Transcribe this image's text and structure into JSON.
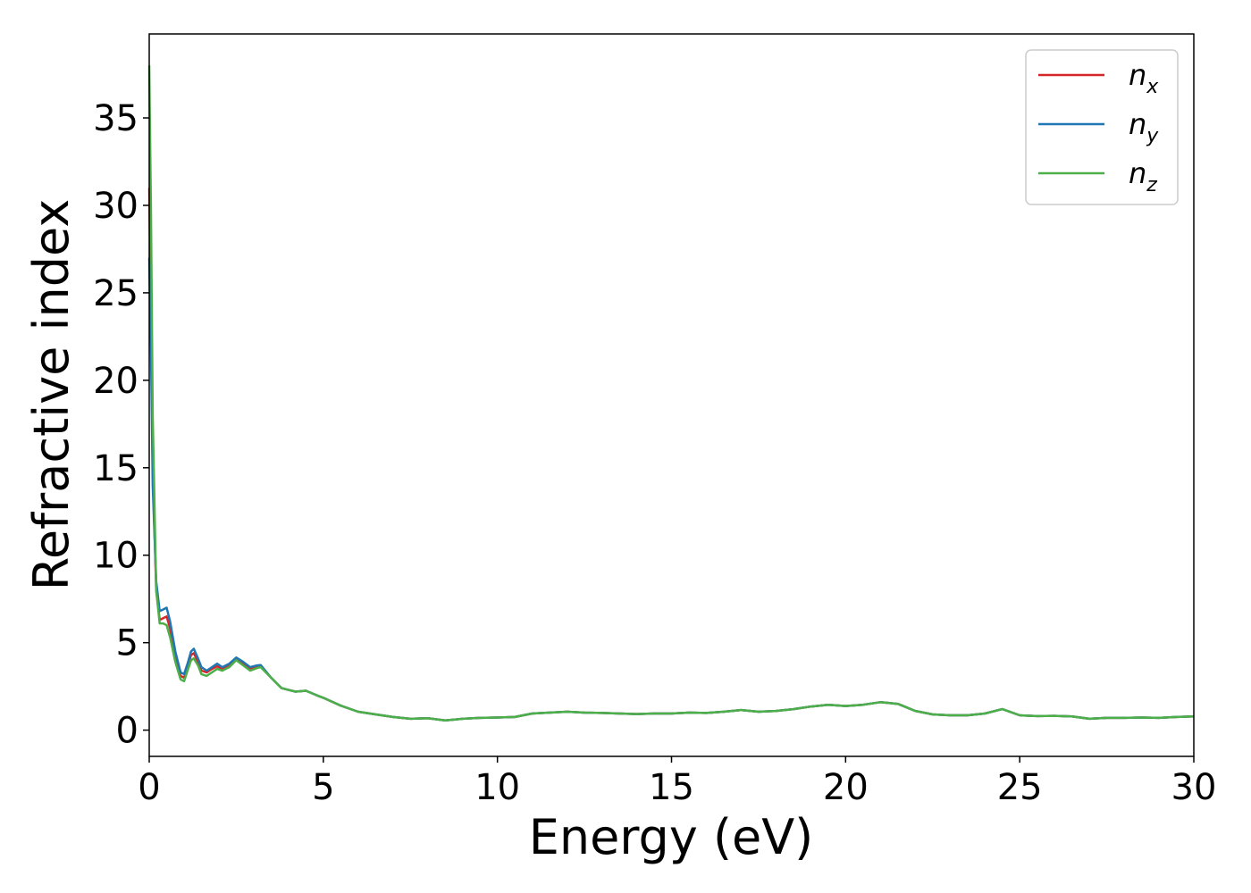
{
  "chart_data": {
    "type": "line",
    "title": "",
    "xlabel": "Energy (eV)",
    "ylabel": "Refractive index",
    "xlim": [
      0,
      30
    ],
    "ylim": [
      -1.5,
      39.8
    ],
    "xticks": [
      0,
      5,
      10,
      15,
      20,
      25,
      30
    ],
    "yticks": [
      0,
      5,
      10,
      15,
      20,
      25,
      30,
      35
    ],
    "grid": false,
    "legend_position": "top-right",
    "series": [
      {
        "name": "n",
        "subscript": "x",
        "color": "#d62728",
        "points": [
          [
            0.0,
            31.0
          ],
          [
            0.05,
            24.0
          ],
          [
            0.1,
            15.0
          ],
          [
            0.2,
            8.0
          ],
          [
            0.3,
            6.3
          ],
          [
            0.4,
            6.4
          ],
          [
            0.5,
            6.5
          ],
          [
            0.6,
            5.8
          ],
          [
            0.75,
            4.2
          ],
          [
            0.9,
            3.1
          ],
          [
            1.0,
            3.0
          ],
          [
            1.1,
            3.6
          ],
          [
            1.2,
            4.3
          ],
          [
            1.28,
            4.4
          ],
          [
            1.4,
            3.9
          ],
          [
            1.5,
            3.4
          ],
          [
            1.65,
            3.3
          ],
          [
            1.8,
            3.5
          ],
          [
            1.95,
            3.65
          ],
          [
            2.1,
            3.5
          ],
          [
            2.3,
            3.7
          ],
          [
            2.5,
            4.05
          ],
          [
            2.7,
            3.8
          ],
          [
            2.9,
            3.5
          ],
          [
            3.1,
            3.6
          ],
          [
            3.2,
            3.65
          ],
          [
            3.5,
            3.0
          ],
          [
            3.8,
            2.4
          ],
          [
            4.0,
            2.3
          ],
          [
            4.2,
            2.2
          ],
          [
            4.5,
            2.25
          ],
          [
            4.8,
            2.0
          ],
          [
            5.0,
            1.85
          ],
          [
            5.5,
            1.4
          ],
          [
            6.0,
            1.05
          ],
          [
            6.5,
            0.9
          ],
          [
            7.0,
            0.75
          ],
          [
            7.5,
            0.65
          ],
          [
            8.0,
            0.68
          ],
          [
            8.5,
            0.55
          ],
          [
            9.0,
            0.65
          ],
          [
            9.5,
            0.7
          ],
          [
            10.0,
            0.72
          ],
          [
            10.5,
            0.75
          ],
          [
            11.0,
            0.95
          ],
          [
            11.5,
            1.0
          ],
          [
            12.0,
            1.05
          ],
          [
            12.5,
            1.0
          ],
          [
            13.0,
            0.98
          ],
          [
            13.5,
            0.95
          ],
          [
            14.0,
            0.92
          ],
          [
            14.5,
            0.95
          ],
          [
            15.0,
            0.95
          ],
          [
            15.5,
            1.0
          ],
          [
            16.0,
            0.98
          ],
          [
            16.5,
            1.05
          ],
          [
            17.0,
            1.15
          ],
          [
            17.5,
            1.05
          ],
          [
            18.0,
            1.1
          ],
          [
            18.5,
            1.2
          ],
          [
            19.0,
            1.35
          ],
          [
            19.5,
            1.45
          ],
          [
            20.0,
            1.38
          ],
          [
            20.5,
            1.45
          ],
          [
            21.0,
            1.6
          ],
          [
            21.5,
            1.5
          ],
          [
            22.0,
            1.1
          ],
          [
            22.5,
            0.9
          ],
          [
            23.0,
            0.85
          ],
          [
            23.5,
            0.85
          ],
          [
            24.0,
            0.95
          ],
          [
            24.5,
            1.2
          ],
          [
            25.0,
            0.85
          ],
          [
            25.5,
            0.8
          ],
          [
            26.0,
            0.82
          ],
          [
            26.5,
            0.78
          ],
          [
            27.0,
            0.65
          ],
          [
            27.5,
            0.7
          ],
          [
            28.0,
            0.7
          ],
          [
            28.5,
            0.72
          ],
          [
            29.0,
            0.7
          ],
          [
            29.5,
            0.75
          ],
          [
            30.0,
            0.78
          ]
        ]
      },
      {
        "name": "n",
        "subscript": "y",
        "color": "#1f77b4",
        "points": [
          [
            0.0,
            27.0
          ],
          [
            0.05,
            22.0
          ],
          [
            0.1,
            14.0
          ],
          [
            0.2,
            8.5
          ],
          [
            0.3,
            6.8
          ],
          [
            0.4,
            6.9
          ],
          [
            0.5,
            7.0
          ],
          [
            0.6,
            6.2
          ],
          [
            0.75,
            4.5
          ],
          [
            0.9,
            3.3
          ],
          [
            1.0,
            3.2
          ],
          [
            1.1,
            3.8
          ],
          [
            1.2,
            4.5
          ],
          [
            1.28,
            4.65
          ],
          [
            1.4,
            4.1
          ],
          [
            1.5,
            3.6
          ],
          [
            1.65,
            3.4
          ],
          [
            1.8,
            3.6
          ],
          [
            1.95,
            3.8
          ],
          [
            2.1,
            3.6
          ],
          [
            2.3,
            3.8
          ],
          [
            2.5,
            4.15
          ],
          [
            2.7,
            3.9
          ],
          [
            2.9,
            3.6
          ],
          [
            3.1,
            3.7
          ],
          [
            3.2,
            3.72
          ],
          [
            3.5,
            3.0
          ],
          [
            3.8,
            2.4
          ],
          [
            4.0,
            2.3
          ],
          [
            4.2,
            2.2
          ],
          [
            4.5,
            2.25
          ],
          [
            4.8,
            2.0
          ],
          [
            5.0,
            1.85
          ],
          [
            5.5,
            1.4
          ],
          [
            6.0,
            1.05
          ],
          [
            6.5,
            0.9
          ],
          [
            7.0,
            0.75
          ],
          [
            7.5,
            0.65
          ],
          [
            8.0,
            0.68
          ],
          [
            8.5,
            0.55
          ],
          [
            9.0,
            0.65
          ],
          [
            9.5,
            0.7
          ],
          [
            10.0,
            0.72
          ],
          [
            10.5,
            0.75
          ],
          [
            11.0,
            0.95
          ],
          [
            11.5,
            1.0
          ],
          [
            12.0,
            1.05
          ],
          [
            12.5,
            1.0
          ],
          [
            13.0,
            0.98
          ],
          [
            13.5,
            0.95
          ],
          [
            14.0,
            0.92
          ],
          [
            14.5,
            0.95
          ],
          [
            15.0,
            0.95
          ],
          [
            15.5,
            1.0
          ],
          [
            16.0,
            0.98
          ],
          [
            16.5,
            1.05
          ],
          [
            17.0,
            1.15
          ],
          [
            17.5,
            1.05
          ],
          [
            18.0,
            1.1
          ],
          [
            18.5,
            1.2
          ],
          [
            19.0,
            1.35
          ],
          [
            19.5,
            1.45
          ],
          [
            20.0,
            1.38
          ],
          [
            20.5,
            1.45
          ],
          [
            21.0,
            1.6
          ],
          [
            21.5,
            1.5
          ],
          [
            22.0,
            1.1
          ],
          [
            22.5,
            0.9
          ],
          [
            23.0,
            0.85
          ],
          [
            23.5,
            0.85
          ],
          [
            24.0,
            0.95
          ],
          [
            24.5,
            1.2
          ],
          [
            25.0,
            0.85
          ],
          [
            25.5,
            0.8
          ],
          [
            26.0,
            0.82
          ],
          [
            26.5,
            0.78
          ],
          [
            27.0,
            0.65
          ],
          [
            27.5,
            0.7
          ],
          [
            28.0,
            0.7
          ],
          [
            28.5,
            0.72
          ],
          [
            29.0,
            0.7
          ],
          [
            29.5,
            0.75
          ],
          [
            30.0,
            0.78
          ]
        ]
      },
      {
        "name": "n",
        "subscript": "z",
        "color": "#4daf4a",
        "points": [
          [
            0.0,
            38.0
          ],
          [
            0.05,
            30.0
          ],
          [
            0.1,
            18.0
          ],
          [
            0.2,
            8.0
          ],
          [
            0.3,
            6.1
          ],
          [
            0.4,
            6.1
          ],
          [
            0.5,
            6.0
          ],
          [
            0.6,
            5.3
          ],
          [
            0.75,
            3.9
          ],
          [
            0.9,
            2.9
          ],
          [
            1.0,
            2.8
          ],
          [
            1.1,
            3.4
          ],
          [
            1.2,
            4.0
          ],
          [
            1.28,
            4.1
          ],
          [
            1.4,
            3.7
          ],
          [
            1.5,
            3.2
          ],
          [
            1.65,
            3.1
          ],
          [
            1.8,
            3.3
          ],
          [
            1.95,
            3.5
          ],
          [
            2.1,
            3.4
          ],
          [
            2.3,
            3.6
          ],
          [
            2.5,
            4.0
          ],
          [
            2.7,
            3.7
          ],
          [
            2.9,
            3.4
          ],
          [
            3.1,
            3.55
          ],
          [
            3.2,
            3.6
          ],
          [
            3.5,
            3.0
          ],
          [
            3.8,
            2.4
          ],
          [
            4.0,
            2.3
          ],
          [
            4.2,
            2.2
          ],
          [
            4.5,
            2.25
          ],
          [
            4.8,
            2.0
          ],
          [
            5.0,
            1.85
          ],
          [
            5.5,
            1.4
          ],
          [
            6.0,
            1.05
          ],
          [
            6.5,
            0.9
          ],
          [
            7.0,
            0.75
          ],
          [
            7.5,
            0.65
          ],
          [
            8.0,
            0.68
          ],
          [
            8.5,
            0.55
          ],
          [
            9.0,
            0.65
          ],
          [
            9.5,
            0.7
          ],
          [
            10.0,
            0.72
          ],
          [
            10.5,
            0.75
          ],
          [
            11.0,
            0.95
          ],
          [
            11.5,
            1.0
          ],
          [
            12.0,
            1.05
          ],
          [
            12.5,
            1.0
          ],
          [
            13.0,
            0.98
          ],
          [
            13.5,
            0.95
          ],
          [
            14.0,
            0.92
          ],
          [
            14.5,
            0.95
          ],
          [
            15.0,
            0.95
          ],
          [
            15.5,
            1.0
          ],
          [
            16.0,
            0.98
          ],
          [
            16.5,
            1.05
          ],
          [
            17.0,
            1.15
          ],
          [
            17.5,
            1.05
          ],
          [
            18.0,
            1.1
          ],
          [
            18.5,
            1.2
          ],
          [
            19.0,
            1.35
          ],
          [
            19.5,
            1.45
          ],
          [
            20.0,
            1.38
          ],
          [
            20.5,
            1.45
          ],
          [
            21.0,
            1.6
          ],
          [
            21.5,
            1.5
          ],
          [
            22.0,
            1.1
          ],
          [
            22.5,
            0.9
          ],
          [
            23.0,
            0.85
          ],
          [
            23.5,
            0.85
          ],
          [
            24.0,
            0.95
          ],
          [
            24.5,
            1.2
          ],
          [
            25.0,
            0.85
          ],
          [
            25.5,
            0.8
          ],
          [
            26.0,
            0.82
          ],
          [
            26.5,
            0.78
          ],
          [
            27.0,
            0.65
          ],
          [
            27.5,
            0.7
          ],
          [
            28.0,
            0.7
          ],
          [
            28.5,
            0.72
          ],
          [
            29.0,
            0.7
          ],
          [
            29.5,
            0.75
          ],
          [
            30.0,
            0.78
          ]
        ]
      }
    ]
  }
}
